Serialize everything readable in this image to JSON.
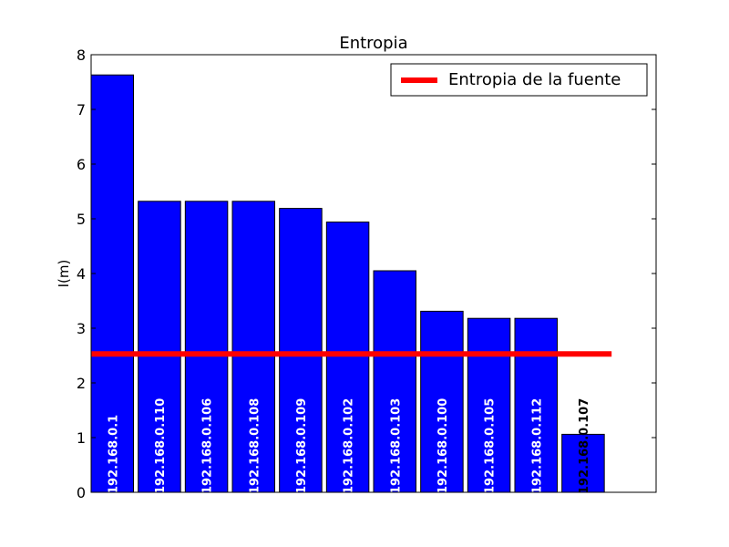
{
  "chart_data": {
    "type": "bar",
    "title": "Entropia",
    "xlabel": "",
    "ylabel": "I(m)",
    "ylim": [
      0,
      8
    ],
    "yticks": [
      0,
      1,
      2,
      3,
      4,
      5,
      6,
      7,
      8
    ],
    "categories": [
      "192.168.0.1",
      "192.168.0.110",
      "192.168.0.106",
      "192.168.0.108",
      "192.168.0.109",
      "192.168.0.102",
      "192.168.0.103",
      "192.168.0.100",
      "192.168.0.105",
      "192.168.0.112",
      "192.168.0.107"
    ],
    "values": [
      7.63,
      5.32,
      5.32,
      5.32,
      5.19,
      4.94,
      4.05,
      3.31,
      3.18,
      3.18,
      1.06
    ],
    "bar_color": "#0000ff",
    "reference_line": {
      "name": "Entropia de la fuente",
      "value": 2.53,
      "color": "#ff0000"
    },
    "legend_placement": "top-right",
    "grid": false
  }
}
